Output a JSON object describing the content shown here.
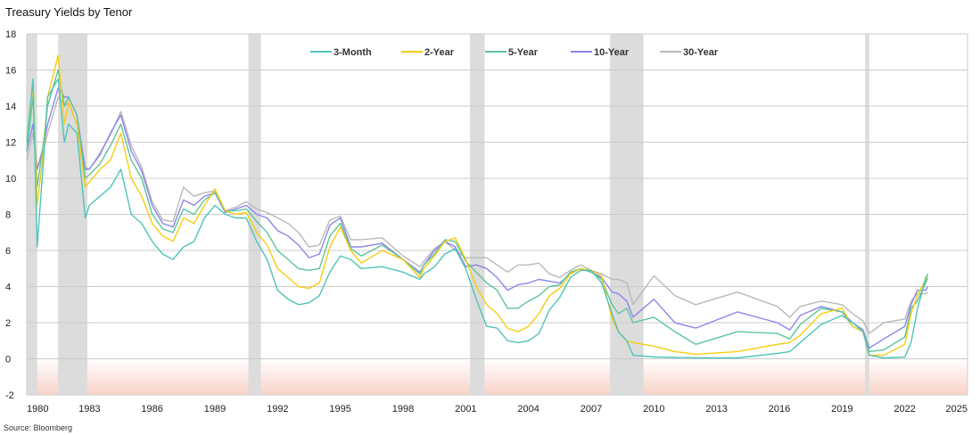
{
  "chart_data": {
    "type": "line",
    "title": "Treasury Yields by Tenor",
    "source": "Source: Bloomberg",
    "xlim": [
      1980,
      2025
    ],
    "ylim": [
      -2,
      18
    ],
    "x_ticks": [
      "1980",
      "1983",
      "1986",
      "1989",
      "1992",
      "1995",
      "1998",
      "2001",
      "2004",
      "2007",
      "2010",
      "2013",
      "2016",
      "2019",
      "2022",
      "2025"
    ],
    "y_ticks": [
      "-2",
      "0",
      "2",
      "4",
      "6",
      "8",
      "10",
      "12",
      "14",
      "16",
      "18"
    ],
    "grid": "horizontal",
    "legend_position": "top-center",
    "recessions": [
      [
        1980.0,
        1980.5
      ],
      [
        1981.5,
        1982.9
      ],
      [
        1990.6,
        1991.2
      ],
      [
        2001.2,
        2001.9
      ],
      [
        2007.9,
        2009.5
      ],
      [
        2020.1,
        2020.3
      ]
    ],
    "negative_zone": [
      -2,
      0
    ],
    "colors": {
      "3-Month": "#4fc4b8",
      "2-Year": "#f5cd12",
      "5-Year": "#5ec49a",
      "10-Year": "#8c86ea",
      "30-Year": "#b9b9b9",
      "recession": "#dcdcdc",
      "negative_zone": "#f9d2c8",
      "grid": "#cccccc"
    },
    "series": [
      {
        "name": "3-Month",
        "x": [
          1980,
          1980.3,
          1980.5,
          1980.8,
          1981,
          1981.5,
          1981.8,
          1982,
          1982.4,
          1982.8,
          1983,
          1983.5,
          1984,
          1984.5,
          1985,
          1985.5,
          1986,
          1986.5,
          1987,
          1987.5,
          1988,
          1988.5,
          1989,
          1989.5,
          1990,
          1990.5,
          1991,
          1991.5,
          1992,
          1992.5,
          1993,
          1993.5,
          1994,
          1994.5,
          1995,
          1995.5,
          1996,
          1997,
          1998,
          1998.8,
          1999,
          1999.5,
          2000,
          2000.5,
          2001,
          2001.5,
          2002,
          2002.5,
          2003,
          2003.5,
          2004,
          2004.5,
          2005,
          2005.5,
          2006,
          2006.5,
          2007,
          2007.5,
          2008,
          2008.3,
          2008.7,
          2009,
          2010,
          2012,
          2014,
          2015.9,
          2016.5,
          2017,
          2018,
          2019,
          2019.5,
          2020,
          2020.3,
          2021,
          2022,
          2022.3,
          2022.6,
          2023,
          2023.1
        ],
        "y": [
          12,
          15.5,
          6.2,
          11,
          14.5,
          15.5,
          12,
          13,
          12.5,
          7.8,
          8.5,
          9.0,
          9.5,
          10.5,
          8,
          7.5,
          6.5,
          5.8,
          5.5,
          6.2,
          6.5,
          7.8,
          8.5,
          8.0,
          7.8,
          7.8,
          6.5,
          5.5,
          3.8,
          3.3,
          3.0,
          3.1,
          3.5,
          4.8,
          5.7,
          5.5,
          5.0,
          5.1,
          4.8,
          4.4,
          4.7,
          5.1,
          5.8,
          6.1,
          5.0,
          3.3,
          1.8,
          1.7,
          1.0,
          0.9,
          1.0,
          1.4,
          2.7,
          3.4,
          4.5,
          4.9,
          4.9,
          4.2,
          2.5,
          1.5,
          1.0,
          0.2,
          0.1,
          0.05,
          0.05,
          0.3,
          0.4,
          0.9,
          1.9,
          2.4,
          2.0,
          1.5,
          0.2,
          0.05,
          0.1,
          0.9,
          2.7,
          4.5,
          4.7
        ]
      },
      {
        "name": "2-Year",
        "x": [
          1980,
          1980.3,
          1980.5,
          1980.8,
          1981,
          1981.5,
          1981.8,
          1982,
          1982.4,
          1982.8,
          1983,
          1983.5,
          1984,
          1984.5,
          1985,
          1985.5,
          1986,
          1986.5,
          1987,
          1987.5,
          1988,
          1988.5,
          1989,
          1989.5,
          1990,
          1990.5,
          1991,
          1991.5,
          1992,
          1992.5,
          1993,
          1993.5,
          1994,
          1994.5,
          1995,
          1995.5,
          1996,
          1997,
          1998,
          1998.8,
          1999,
          1999.5,
          2000,
          2000.5,
          2001,
          2001.5,
          2002,
          2002.5,
          2003,
          2003.5,
          2004,
          2004.5,
          2005,
          2005.5,
          2006,
          2006.5,
          2007,
          2007.5,
          2008,
          2008.3,
          2008.7,
          2009,
          2010,
          2011,
          2012,
          2014,
          2015.9,
          2016.5,
          2017,
          2018,
          2019,
          2019.5,
          2020,
          2020.3,
          2021,
          2022,
          2022.3,
          2022.6,
          2023,
          2023.1
        ],
        "y": [
          12,
          15.2,
          8.5,
          11.5,
          14.5,
          16.8,
          13,
          14.2,
          13,
          9.5,
          9.8,
          10.5,
          11,
          12.5,
          10,
          9.0,
          7.5,
          6.8,
          6.5,
          7.8,
          7.5,
          8.5,
          9.4,
          8.2,
          8.0,
          8.1,
          7.0,
          6.3,
          5.0,
          4.5,
          4.0,
          3.9,
          4.2,
          6.2,
          7.3,
          6.0,
          5.3,
          6.0,
          5.5,
          4.5,
          5.0,
          5.7,
          6.5,
          6.7,
          5.5,
          4.0,
          3.0,
          2.5,
          1.7,
          1.5,
          1.8,
          2.5,
          3.5,
          3.9,
          4.7,
          5.0,
          4.9,
          4.6,
          2.2,
          1.5,
          1.0,
          0.9,
          0.7,
          0.4,
          0.25,
          0.4,
          0.8,
          0.9,
          1.3,
          2.5,
          2.8,
          1.8,
          1.5,
          0.2,
          0.2,
          0.8,
          2.5,
          3.5,
          4.4,
          4.7
        ]
      },
      {
        "name": "5-Year",
        "x": [
          1980,
          1980.3,
          1980.5,
          1980.8,
          1981,
          1981.5,
          1981.8,
          1982,
          1982.4,
          1982.8,
          1983,
          1983.5,
          1984,
          1984.5,
          1985,
          1985.5,
          1986,
          1986.5,
          1987,
          1987.5,
          1988,
          1988.5,
          1989,
          1989.5,
          1990,
          1990.5,
          1991,
          1991.5,
          1992,
          1992.5,
          1993,
          1993.5,
          1994,
          1994.5,
          1995,
          1995.5,
          1996,
          1997,
          1998,
          1998.8,
          1999,
          1999.5,
          2000,
          2000.5,
          2001,
          2001.5,
          2002,
          2002.5,
          2003,
          2003.5,
          2004,
          2004.5,
          2005,
          2005.5,
          2006,
          2006.5,
          2007,
          2007.5,
          2008,
          2008.3,
          2008.7,
          2009,
          2010,
          2011,
          2012,
          2014,
          2015.9,
          2016.5,
          2017,
          2018,
          2019,
          2019.5,
          2020,
          2020.3,
          2021,
          2022,
          2022.3,
          2022.6,
          2023,
          2023.1
        ],
        "y": [
          11.5,
          14.5,
          9.5,
          12,
          14,
          16,
          14,
          14.5,
          13.5,
          10,
          10.2,
          10.8,
          11.8,
          13,
          11,
          10,
          8,
          7.2,
          7.0,
          8.3,
          8.0,
          8.8,
          9.2,
          8.2,
          8.2,
          8.3,
          7.6,
          7.0,
          6.0,
          5.5,
          5.0,
          4.9,
          5.0,
          6.8,
          7.5,
          6.1,
          5.7,
          6.3,
          5.5,
          4.7,
          5.2,
          5.8,
          6.6,
          6.5,
          5.4,
          4.8,
          4.2,
          3.8,
          2.8,
          2.8,
          3.2,
          3.5,
          4.0,
          4.1,
          4.8,
          5.0,
          4.8,
          4.4,
          3.0,
          2.5,
          2.8,
          2.0,
          2.3,
          1.5,
          0.8,
          1.5,
          1.4,
          1.1,
          1.9,
          2.8,
          2.6,
          1.8,
          1.5,
          0.4,
          0.5,
          1.2,
          2.8,
          3.2,
          4.2,
          4.5
        ]
      },
      {
        "name": "10-Year",
        "x": [
          1980,
          1980.3,
          1980.5,
          1980.8,
          1981,
          1981.5,
          1981.8,
          1982,
          1982.4,
          1982.8,
          1983,
          1983.5,
          1984,
          1984.5,
          1985,
          1985.5,
          1986,
          1986.5,
          1987,
          1987.5,
          1988,
          1988.5,
          1989,
          1989.5,
          1990,
          1990.5,
          1991,
          1991.5,
          1992,
          1992.5,
          1993,
          1993.5,
          1994,
          1994.5,
          1995,
          1995.5,
          1996,
          1997,
          1998,
          1998.8,
          1999,
          1999.5,
          2000,
          2000.5,
          2001,
          2001.5,
          2002,
          2002.5,
          2003,
          2003.5,
          2004,
          2004.5,
          2005,
          2005.5,
          2006,
          2006.5,
          2007,
          2007.5,
          2008,
          2008.3,
          2008.7,
          2009,
          2010,
          2011,
          2012,
          2014,
          2015.9,
          2016.5,
          2017,
          2018,
          2019,
          2019.5,
          2020,
          2020.3,
          2021,
          2022,
          2022.3,
          2022.6,
          2023,
          2023.1
        ],
        "y": [
          11.5,
          13.0,
          10.5,
          11.8,
          13,
          15,
          14.5,
          14.5,
          13.5,
          10.5,
          10.5,
          11.3,
          12.5,
          13.5,
          11.5,
          10.4,
          8.5,
          7.5,
          7.3,
          8.8,
          8.5,
          9.0,
          9.2,
          8.1,
          8.3,
          8.5,
          8.0,
          7.8,
          7.1,
          6.8,
          6.3,
          5.6,
          5.8,
          7.4,
          7.8,
          6.2,
          6.2,
          6.4,
          5.5,
          4.8,
          5.2,
          6.0,
          6.5,
          6.2,
          5.1,
          5.2,
          5.0,
          4.5,
          3.8,
          4.1,
          4.2,
          4.4,
          4.3,
          4.2,
          4.7,
          5.0,
          4.8,
          4.5,
          3.7,
          3.6,
          3.2,
          2.3,
          3.3,
          2.0,
          1.7,
          2.6,
          2.0,
          1.6,
          2.4,
          2.9,
          2.6,
          2.0,
          1.6,
          0.6,
          1.1,
          1.8,
          3.0,
          3.8,
          3.8,
          4.0
        ]
      },
      {
        "name": "30-Year",
        "x": [
          1980,
          1980.3,
          1980.5,
          1980.8,
          1981,
          1981.5,
          1981.8,
          1982,
          1982.4,
          1982.8,
          1983,
          1983.5,
          1984,
          1984.5,
          1985,
          1985.5,
          1986,
          1986.5,
          1987,
          1987.5,
          1988,
          1988.5,
          1989,
          1989.5,
          1990,
          1990.5,
          1991,
          1991.5,
          1992,
          1992.5,
          1993,
          1993.5,
          1994,
          1994.5,
          1995,
          1995.5,
          1996,
          1997,
          1998,
          1998.8,
          1999,
          1999.5,
          2000,
          2000.5,
          2001,
          2001.5,
          2002,
          2002.5,
          2003,
          2003.5,
          2004,
          2004.5,
          2005,
          2005.5,
          2006,
          2006.5,
          2007,
          2007.5,
          2008,
          2008.3,
          2008.7,
          2009,
          2010,
          2011,
          2012,
          2014,
          2015.9,
          2016.5,
          2017,
          2018,
          2019,
          2019.5,
          2020,
          2020.3,
          2021,
          2022,
          2022.3,
          2022.6,
          2023,
          2023.1
        ],
        "y": [
          11,
          12.5,
          10.5,
          11.5,
          12.5,
          14.5,
          14,
          14.2,
          13,
          10.6,
          10.5,
          11.4,
          12.4,
          13.7,
          11.8,
          10.6,
          8.7,
          7.7,
          7.6,
          9.5,
          9.0,
          9.2,
          9.3,
          8.2,
          8.4,
          8.7,
          8.3,
          8.1,
          7.8,
          7.5,
          7.0,
          6.2,
          6.3,
          7.7,
          7.9,
          6.6,
          6.6,
          6.7,
          5.7,
          5.1,
          5.4,
          6.1,
          6.5,
          6.0,
          5.6,
          5.6,
          5.6,
          5.2,
          4.8,
          5.2,
          5.2,
          5.3,
          4.7,
          4.5,
          4.9,
          5.2,
          4.9,
          4.7,
          4.4,
          4.4,
          4.2,
          3.0,
          4.6,
          3.5,
          3.0,
          3.7,
          2.9,
          2.3,
          2.9,
          3.2,
          3.0,
          2.5,
          2.1,
          1.4,
          2.0,
          2.2,
          3.2,
          3.6,
          3.6,
          3.7
        ]
      }
    ]
  }
}
